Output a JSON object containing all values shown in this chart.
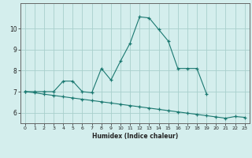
{
  "xlabel": "Humidex (Indice chaleur)",
  "ylabel": "",
  "bg_color": "#d4eeed",
  "line_color": "#1a7870",
  "grid_color": "#a8d0cc",
  "axis_color": "#666666",
  "xlim": [
    -0.5,
    23.5
  ],
  "ylim": [
    5.5,
    11.2
  ],
  "xticks": [
    0,
    1,
    2,
    3,
    4,
    5,
    6,
    7,
    8,
    9,
    10,
    11,
    12,
    13,
    14,
    15,
    16,
    17,
    18,
    19,
    20,
    21,
    22,
    23
  ],
  "yticks": [
    6,
    7,
    8,
    9,
    10
  ],
  "series1_x": [
    0,
    1,
    2,
    3,
    4,
    5,
    6,
    7,
    8,
    9,
    10,
    11,
    12,
    13,
    14,
    15,
    16,
    17,
    18,
    19
  ],
  "series1_y": [
    7.0,
    7.0,
    7.0,
    7.0,
    7.5,
    7.5,
    7.0,
    6.95,
    8.1,
    7.55,
    8.45,
    9.3,
    10.55,
    10.5,
    9.95,
    9.4,
    8.1,
    8.1,
    8.1,
    6.9
  ],
  "series2_x": [
    0,
    1,
    2,
    3,
    4,
    5,
    6,
    7,
    8,
    9,
    10,
    11,
    12,
    13,
    14,
    15,
    16,
    17,
    18,
    19,
    20,
    21,
    22,
    23
  ],
  "series2_y": [
    7.0,
    6.95,
    6.88,
    6.82,
    6.76,
    6.7,
    6.64,
    6.58,
    6.52,
    6.46,
    6.4,
    6.34,
    6.28,
    6.22,
    6.16,
    6.1,
    6.04,
    5.98,
    5.92,
    5.86,
    5.8,
    5.74,
    5.82,
    5.78
  ]
}
